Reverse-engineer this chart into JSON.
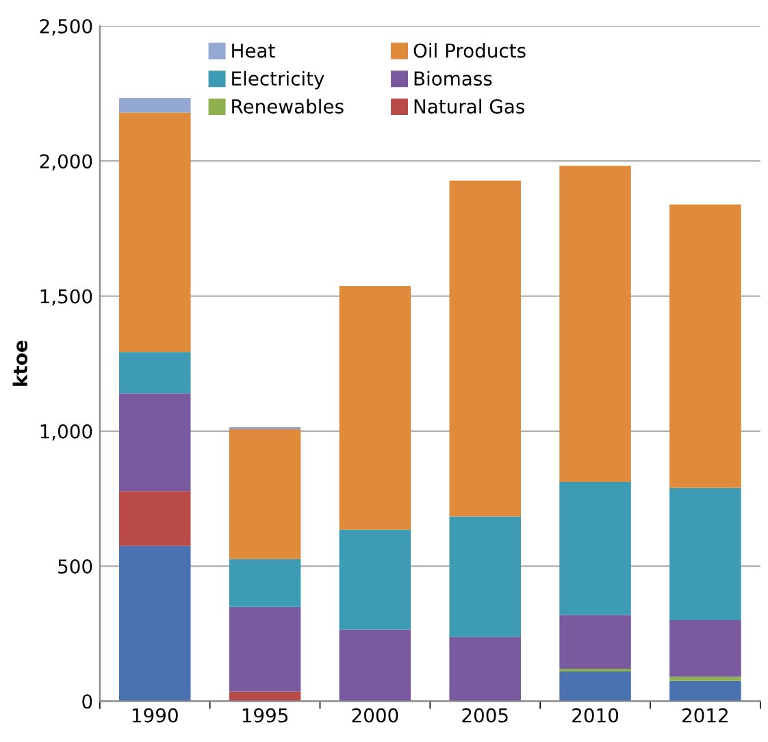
{
  "chart_data": {
    "type": "bar",
    "stacked": true,
    "ylabel": "ktoe",
    "categories": [
      "1990",
      "1995",
      "2000",
      "2005",
      "2010",
      "2012"
    ],
    "series": [
      {
        "color": "#4a72b0",
        "values": [
          575,
          0,
          0,
          0,
          110,
          75
        ]
      },
      {
        "name": "Natural Gas",
        "color": "#b94a48",
        "values": [
          203,
          35,
          0,
          0,
          0,
          0
        ]
      },
      {
        "name": "Renewables",
        "color": "#8fb04e",
        "values": [
          0,
          0,
          0,
          0,
          10,
          15
        ]
      },
      {
        "name": "Biomass",
        "color": "#7a5a9e",
        "values": [
          362,
          314,
          265,
          238,
          199,
          210
        ]
      },
      {
        "name": "Electricity",
        "color": "#3e9bb4",
        "values": [
          153,
          177,
          370,
          446,
          493,
          490
        ]
      },
      {
        "name": "Oil Products",
        "color": "#e08a3c",
        "values": [
          886,
          481,
          902,
          1244,
          1170,
          1049
        ]
      },
      {
        "name": "Heat",
        "color": "#93a9d4",
        "values": [
          55,
          8,
          0,
          0,
          0,
          0
        ]
      }
    ],
    "ylim": [
      0,
      2500
    ],
    "yticks": [
      0,
      500,
      {
        "value": 1000,
        "label": "1,000"
      },
      {
        "value": 1500,
        "label": "1,500"
      },
      {
        "value": 2000,
        "label": "2,000"
      },
      {
        "value": 2500,
        "label": "2,500"
      }
    ],
    "grid": "y",
    "legend": "top left"
  }
}
